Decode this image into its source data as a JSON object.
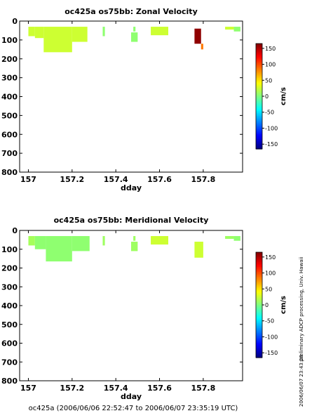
{
  "footer": "oc425a (2006/06/06 22:52:47 to 2006/06/07 23:35:19 UTC)",
  "side_note": "preliminary ADCP processing,  Univ. Hawaii",
  "side_date": "2006/06/07 23:43:28",
  "colorbar": {
    "label": "cm/s",
    "ticks": [
      150,
      100,
      50,
      0,
      -50,
      -100,
      -150
    ],
    "range": [
      -165,
      165
    ]
  },
  "chart_data": [
    {
      "type": "heatmap",
      "title": "oc425a os75bb: Zonal Velocity",
      "xlabel": "dday",
      "ylabel": "",
      "xlim": [
        156.96,
        157.98
      ],
      "ylim": [
        800,
        0
      ],
      "y_inverted": true,
      "x_ticks": [
        157,
        157.2,
        157.4,
        157.6,
        157.8
      ],
      "y_ticks": [
        0,
        100,
        200,
        300,
        400,
        500,
        600,
        700,
        800
      ],
      "cells": [
        {
          "x": [
            157.0,
            157.03
          ],
          "y": [
            30,
            80
          ],
          "value": 25
        },
        {
          "x": [
            157.03,
            157.07
          ],
          "y": [
            30,
            90
          ],
          "value": 25
        },
        {
          "x": [
            157.07,
            157.2
          ],
          "y": [
            30,
            165
          ],
          "value": 25
        },
        {
          "x": [
            157.2,
            157.27
          ],
          "y": [
            30,
            110
          ],
          "value": 25
        },
        {
          "x": [
            157.34,
            157.35
          ],
          "y": [
            30,
            80
          ],
          "value": 5
        },
        {
          "x": [
            157.47,
            157.5
          ],
          "y": [
            60,
            110
          ],
          "value": 5
        },
        {
          "x": [
            157.48,
            157.49
          ],
          "y": [
            30,
            55
          ],
          "value": 5
        },
        {
          "x": [
            157.56,
            157.64
          ],
          "y": [
            30,
            75
          ],
          "value": 25
        },
        {
          "x": [
            157.76,
            157.79
          ],
          "y": [
            40,
            120
          ],
          "value": 160
        },
        {
          "x": [
            157.79,
            157.8
          ],
          "y": [
            120,
            150
          ],
          "value": 85
        },
        {
          "x": [
            157.9,
            157.94
          ],
          "y": [
            30,
            45
          ],
          "value": 25
        },
        {
          "x": [
            157.94,
            157.97
          ],
          "y": [
            30,
            55
          ],
          "value": 5
        }
      ]
    },
    {
      "type": "heatmap",
      "title": "oc425a os75bb: Meridional Velocity",
      "xlabel": "dday",
      "ylabel": "",
      "xlim": [
        156.96,
        157.98
      ],
      "ylim": [
        800,
        0
      ],
      "y_inverted": true,
      "x_ticks": [
        157,
        157.2,
        157.4,
        157.6,
        157.8
      ],
      "y_ticks": [
        0,
        100,
        200,
        300,
        400,
        500,
        600,
        700,
        800
      ],
      "cells": [
        {
          "x": [
            157.0,
            157.03
          ],
          "y": [
            30,
            80
          ],
          "value": 12
        },
        {
          "x": [
            157.03,
            157.08
          ],
          "y": [
            30,
            100
          ],
          "value": 5
        },
        {
          "x": [
            157.08,
            157.2
          ],
          "y": [
            30,
            165
          ],
          "value": 5
        },
        {
          "x": [
            157.2,
            157.28
          ],
          "y": [
            30,
            110
          ],
          "value": 5
        },
        {
          "x": [
            157.34,
            157.35
          ],
          "y": [
            30,
            80
          ],
          "value": 10
        },
        {
          "x": [
            157.47,
            157.5
          ],
          "y": [
            60,
            110
          ],
          "value": 10
        },
        {
          "x": [
            157.48,
            157.49
          ],
          "y": [
            30,
            55
          ],
          "value": 10
        },
        {
          "x": [
            157.56,
            157.64
          ],
          "y": [
            30,
            75
          ],
          "value": 25
        },
        {
          "x": [
            157.76,
            157.8
          ],
          "y": [
            60,
            145
          ],
          "value": 25
        },
        {
          "x": [
            157.9,
            157.94
          ],
          "y": [
            30,
            45
          ],
          "value": 10
        },
        {
          "x": [
            157.94,
            157.97
          ],
          "y": [
            30,
            55
          ],
          "value": 5
        }
      ]
    }
  ]
}
